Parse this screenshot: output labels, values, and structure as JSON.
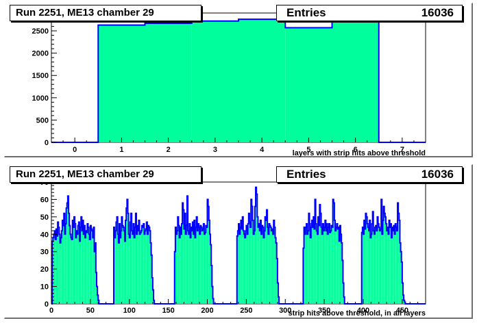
{
  "chart_data": [
    {
      "type": "bar",
      "title": "Run 2251, ME13 chamber 29",
      "stats": {
        "label": "Entries",
        "value": "16036"
      },
      "xlabel": "layers with strip hits above threshold",
      "xlim": [
        -0.5,
        7.5
      ],
      "ylim": [
        0,
        2900
      ],
      "xticks": [
        "0",
        "1",
        "2",
        "3",
        "4",
        "5",
        "6",
        "7"
      ],
      "yticks": [
        "0",
        "500",
        "1000",
        "1500",
        "2000",
        "2500"
      ],
      "categories": [
        0,
        1,
        2,
        3,
        4,
        5,
        6,
        7
      ],
      "values": [
        0,
        2630,
        2670,
        2720,
        2760,
        2570,
        2700,
        0
      ],
      "fill_color": "#00ff9c",
      "line_color": "#0000ff"
    },
    {
      "type": "bar",
      "title": "Run 2251, ME13 chamber 29",
      "stats": {
        "label": "Entries",
        "value": "16036"
      },
      "xlabel": "strip hits above threshold, in all layers",
      "xlim": [
        0,
        480
      ],
      "ylim": [
        0,
        70
      ],
      "xticks": [
        "0",
        "50",
        "100",
        "150",
        "200",
        "250",
        "300",
        "350",
        "400",
        "450"
      ],
      "yticks": [
        "0",
        "10",
        "20",
        "30",
        "40",
        "50",
        "60",
        "70"
      ],
      "groups": [
        {
          "start": 1,
          "values": [
            36,
            38,
            40,
            42,
            37,
            43,
            39,
            47,
            44,
            40,
            35,
            38,
            42,
            48,
            45,
            52,
            40,
            46,
            55,
            58,
            62,
            52,
            45,
            40,
            38,
            37,
            48,
            44,
            50,
            46,
            38,
            42,
            40,
            45,
            47,
            36,
            44,
            50,
            42,
            48,
            40,
            45,
            38,
            42,
            41,
            46,
            44,
            40,
            37,
            45,
            43,
            42,
            38,
            44,
            30,
            35,
            18,
            10,
            5,
            2
          ]
        },
        {
          "start": 80,
          "values": [
            44,
            38,
            42,
            47,
            50,
            40,
            35,
            46,
            38,
            42,
            50,
            45,
            44,
            42,
            36,
            48,
            55,
            60,
            52,
            40,
            38,
            47,
            52,
            42,
            40,
            46,
            38,
            44,
            52,
            40,
            45,
            42,
            48,
            40,
            41,
            42,
            45,
            44,
            46,
            40,
            42,
            43,
            47,
            40,
            45,
            44,
            42,
            35,
            28,
            15,
            8,
            2
          ]
        },
        {
          "start": 158,
          "values": [
            30,
            44,
            40,
            42,
            50,
            45,
            38,
            44,
            40,
            46,
            58,
            54,
            43,
            52,
            40,
            45,
            62,
            42,
            40,
            46,
            38,
            44,
            42,
            47,
            40,
            48,
            38,
            44,
            50,
            42,
            46,
            44,
            40,
            45,
            44,
            42,
            43,
            46,
            40,
            41,
            45,
            44,
            60,
            56,
            48,
            40,
            34,
            22,
            10,
            3
          ]
        },
        {
          "start": 238,
          "values": [
            39,
            42,
            46,
            40,
            44,
            48,
            43,
            50,
            42,
            40,
            38,
            42,
            45,
            40,
            46,
            52,
            47,
            44,
            60,
            56,
            48,
            40,
            42,
            56,
            67,
            63,
            50,
            44,
            46,
            42,
            48,
            40,
            45,
            44,
            38,
            42,
            50,
            48,
            54,
            44,
            40,
            46,
            45,
            44,
            42,
            43,
            40,
            48,
            44,
            38,
            35,
            26,
            12,
            4
          ]
        },
        {
          "start": 323,
          "values": [
            32,
            44,
            40,
            44,
            46,
            40,
            42,
            52,
            46,
            38,
            44,
            48,
            44,
            50,
            43,
            60,
            46,
            42,
            40,
            50,
            45,
            57,
            52,
            44,
            40,
            46,
            42,
            44,
            48,
            42,
            46,
            40,
            44,
            46,
            41,
            42,
            45,
            44,
            60,
            58,
            48,
            42,
            44,
            46,
            43,
            44,
            36,
            45,
            40,
            35,
            25,
            12,
            4
          ]
        },
        {
          "start": 398,
          "values": [
            41,
            44,
            40,
            48,
            43,
            52,
            50,
            46,
            44,
            42,
            48,
            38,
            40,
            46,
            53,
            42,
            40,
            44,
            45,
            42,
            50,
            46,
            44,
            42,
            43,
            60,
            40,
            48,
            56,
            52,
            50,
            46,
            42,
            44,
            40,
            48,
            44,
            46,
            38,
            44,
            42,
            45,
            40,
            46,
            44,
            42,
            58,
            52,
            48,
            35,
            30,
            24,
            12,
            5,
            2,
            1
          ]
        }
      ],
      "fill_color": "#00ff9c",
      "line_color": "#0000ff"
    }
  ]
}
